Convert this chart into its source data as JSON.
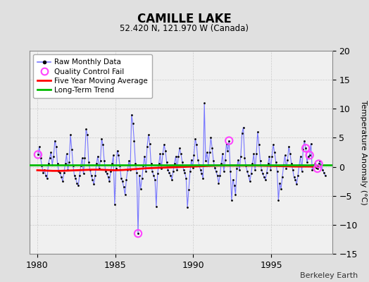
{
  "title": "CAMILLE LAKE",
  "subtitle": "52.420 N, 121.970 W (Canada)",
  "ylabel": "Temperature Anomaly (°C)",
  "attribution": "Berkeley Earth",
  "ylim": [
    -15,
    20
  ],
  "yticks": [
    -15,
    -10,
    -5,
    0,
    5,
    10,
    15,
    20
  ],
  "xlim": [
    1979.5,
    1998.9
  ],
  "xticks": [
    1980,
    1985,
    1990,
    1995
  ],
  "fig_bg": "#e0e0e0",
  "plot_bg": "#f0f0f0",
  "raw_color": "#7777ff",
  "dot_color": "#000000",
  "ma_color": "#ff0000",
  "trend_color": "#00bb00",
  "qc_color": "#ff44ff",
  "raw_monthly_data": [
    1980.042,
    2.1,
    1980.125,
    3.5,
    1980.208,
    1.5,
    1980.292,
    0.2,
    1980.375,
    -1.0,
    1980.458,
    -0.5,
    1980.542,
    -1.5,
    1980.625,
    -2.0,
    1980.708,
    0.5,
    1980.792,
    1.5,
    1980.875,
    2.5,
    1980.958,
    0.3,
    1981.042,
    1.8,
    1981.125,
    4.5,
    1981.208,
    3.5,
    1981.292,
    0.5,
    1981.375,
    -0.8,
    1981.458,
    -1.0,
    1981.542,
    -1.8,
    1981.625,
    -2.5,
    1981.708,
    -1.0,
    1981.792,
    0.5,
    1981.875,
    2.2,
    1981.958,
    -0.5,
    1982.042,
    0.8,
    1982.125,
    5.5,
    1982.208,
    3.0,
    1982.292,
    0.2,
    1982.375,
    -1.5,
    1982.458,
    -2.0,
    1982.542,
    -2.8,
    1982.625,
    -3.2,
    1982.708,
    -1.5,
    1982.792,
    0.2,
    1982.875,
    1.5,
    1982.958,
    -1.2,
    1983.042,
    1.5,
    1983.125,
    6.5,
    1983.208,
    5.5,
    1983.292,
    0.8,
    1983.375,
    -0.5,
    1983.458,
    -1.5,
    1983.542,
    -2.2,
    1983.625,
    -3.0,
    1983.708,
    -1.5,
    1983.792,
    0.5,
    1983.875,
    1.8,
    1983.958,
    -0.3,
    1984.042,
    1.0,
    1984.125,
    4.8,
    1984.208,
    3.8,
    1984.292,
    1.0,
    1984.375,
    -0.8,
    1984.458,
    -1.2,
    1984.542,
    -1.8,
    1984.625,
    -2.5,
    1984.708,
    -0.8,
    1984.792,
    0.5,
    1984.875,
    2.0,
    1984.958,
    -6.5,
    1985.042,
    -0.3,
    1985.125,
    2.8,
    1985.208,
    2.0,
    1985.292,
    0.2,
    1985.375,
    -2.0,
    1985.458,
    -2.5,
    1985.542,
    -3.5,
    1985.625,
    -4.8,
    1985.708,
    -2.2,
    1985.792,
    -0.5,
    1985.875,
    1.0,
    1985.958,
    -0.5,
    1986.042,
    9.0,
    1986.125,
    7.5,
    1986.208,
    4.5,
    1986.292,
    0.5,
    1986.375,
    -1.0,
    1986.458,
    -11.5,
    1986.542,
    -1.5,
    1986.625,
    -3.8,
    1986.708,
    -2.0,
    1986.792,
    0.2,
    1986.875,
    1.8,
    1986.958,
    -0.8,
    1987.042,
    3.5,
    1987.125,
    5.5,
    1987.208,
    4.0,
    1987.292,
    0.5,
    1987.375,
    -0.8,
    1987.458,
    -1.5,
    1987.542,
    -2.2,
    1987.625,
    -6.8,
    1987.708,
    -1.2,
    1987.792,
    0.5,
    1987.875,
    2.2,
    1987.958,
    -0.3,
    1988.042,
    2.2,
    1988.125,
    3.8,
    1988.208,
    2.8,
    1988.292,
    0.8,
    1988.375,
    -0.5,
    1988.458,
    -1.0,
    1988.542,
    -1.5,
    1988.625,
    -2.2,
    1988.708,
    -0.8,
    1988.792,
    0.5,
    1988.875,
    1.8,
    1988.958,
    -0.5,
    1989.042,
    1.8,
    1989.125,
    3.2,
    1989.208,
    2.2,
    1989.292,
    0.8,
    1989.375,
    -0.5,
    1989.458,
    -1.0,
    1989.542,
    -2.0,
    1989.625,
    -7.0,
    1989.708,
    -4.0,
    1989.792,
    -0.8,
    1989.875,
    1.2,
    1989.958,
    -0.2,
    1990.042,
    2.0,
    1990.125,
    4.8,
    1990.208,
    3.8,
    1990.292,
    1.2,
    1990.375,
    0.3,
    1990.458,
    -0.5,
    1990.542,
    -1.2,
    1990.625,
    -2.0,
    1990.708,
    11.0,
    1990.792,
    1.0,
    1990.875,
    2.5,
    1990.958,
    0.3,
    1991.042,
    2.5,
    1991.125,
    5.0,
    1991.208,
    3.2,
    1991.292,
    1.0,
    1991.375,
    -0.2,
    1991.458,
    -0.8,
    1991.542,
    -1.5,
    1991.625,
    -2.8,
    1991.708,
    -1.5,
    1991.792,
    0.5,
    1991.875,
    2.2,
    1991.958,
    -0.8,
    1992.042,
    1.2,
    1992.125,
    4.0,
    1992.208,
    2.8,
    1992.292,
    4.5,
    1992.375,
    -0.8,
    1992.458,
    -5.8,
    1992.542,
    -2.2,
    1992.625,
    -3.2,
    1992.708,
    -4.8,
    1992.792,
    -0.3,
    1992.875,
    1.2,
    1992.958,
    -0.5,
    1993.042,
    1.8,
    1993.125,
    5.8,
    1993.208,
    6.8,
    1993.292,
    1.5,
    1993.375,
    0.2,
    1993.458,
    -0.8,
    1993.542,
    -1.5,
    1993.625,
    -2.5,
    1993.708,
    -1.2,
    1993.792,
    0.5,
    1993.875,
    2.2,
    1993.958,
    -0.5,
    1994.042,
    2.2,
    1994.125,
    6.0,
    1994.208,
    3.8,
    1994.292,
    1.0,
    1994.375,
    -0.5,
    1994.458,
    -1.2,
    1994.542,
    -1.8,
    1994.625,
    -2.2,
    1994.708,
    -1.0,
    1994.792,
    0.5,
    1994.875,
    1.8,
    1994.958,
    -0.5,
    1995.042,
    1.8,
    1995.125,
    3.8,
    1995.208,
    2.5,
    1995.292,
    0.8,
    1995.375,
    -0.8,
    1995.458,
    -5.8,
    1995.542,
    -2.8,
    1995.625,
    -3.8,
    1995.708,
    -1.8,
    1995.792,
    0.3,
    1995.875,
    2.0,
    1995.958,
    -0.3,
    1996.042,
    1.2,
    1996.125,
    3.5,
    1996.208,
    2.2,
    1996.292,
    0.5,
    1996.375,
    -0.5,
    1996.458,
    -1.8,
    1996.542,
    -2.2,
    1996.625,
    -3.0,
    1996.708,
    -1.5,
    1996.792,
    0.3,
    1996.875,
    1.8,
    1996.958,
    -0.8,
    1997.042,
    3.0,
    1997.125,
    4.5,
    1997.208,
    3.2,
    1997.292,
    0.8,
    1997.375,
    1.8,
    1997.458,
    2.0,
    1997.542,
    4.0,
    1997.625,
    -0.5,
    1997.708,
    0.3,
    1997.792,
    0.5,
    1997.875,
    -0.2,
    1997.958,
    -0.3,
    1998.042,
    0.5,
    1998.125,
    1.0,
    1998.208,
    0.3,
    1998.292,
    -0.5,
    1998.375,
    -1.0,
    1998.458,
    -1.5
  ],
  "qc_fail_points": [
    [
      1980.042,
      2.1
    ],
    [
      1986.458,
      -11.5
    ],
    [
      1992.292,
      4.5
    ],
    [
      1997.208,
      3.2
    ],
    [
      1997.458,
      2.0
    ],
    [
      1997.958,
      -0.3
    ],
    [
      1998.042,
      0.5
    ]
  ],
  "moving_avg_x": [
    1980.0,
    1980.5,
    1981.0,
    1981.5,
    1982.0,
    1982.5,
    1983.0,
    1983.5,
    1984.0,
    1984.5,
    1985.0,
    1985.5,
    1986.0,
    1986.5,
    1987.0,
    1987.5,
    1988.0,
    1988.5,
    1989.0,
    1989.5,
    1990.0,
    1990.5,
    1991.0,
    1991.5,
    1992.0,
    1992.5,
    1993.0,
    1993.5,
    1994.0,
    1994.5,
    1995.0,
    1995.5,
    1996.0,
    1996.5,
    1997.0,
    1997.5,
    1998.0
  ],
  "moving_avg_y": [
    -0.6,
    -0.65,
    -0.7,
    -0.7,
    -0.65,
    -0.6,
    -0.55,
    -0.5,
    -0.5,
    -0.55,
    -0.6,
    -0.55,
    -0.45,
    -0.35,
    -0.25,
    -0.2,
    -0.15,
    -0.1,
    -0.05,
    0.0,
    0.05,
    0.1,
    0.15,
    0.2,
    0.2,
    0.2,
    0.2,
    0.2,
    0.2,
    0.18,
    0.15,
    0.12,
    0.1,
    0.05,
    0.05,
    0.05,
    0.05
  ],
  "trend_x": [
    1979.5,
    1998.9
  ],
  "trend_y": [
    0.35,
    0.35
  ],
  "grid_color": "#cccccc",
  "spine_color": "#888888"
}
